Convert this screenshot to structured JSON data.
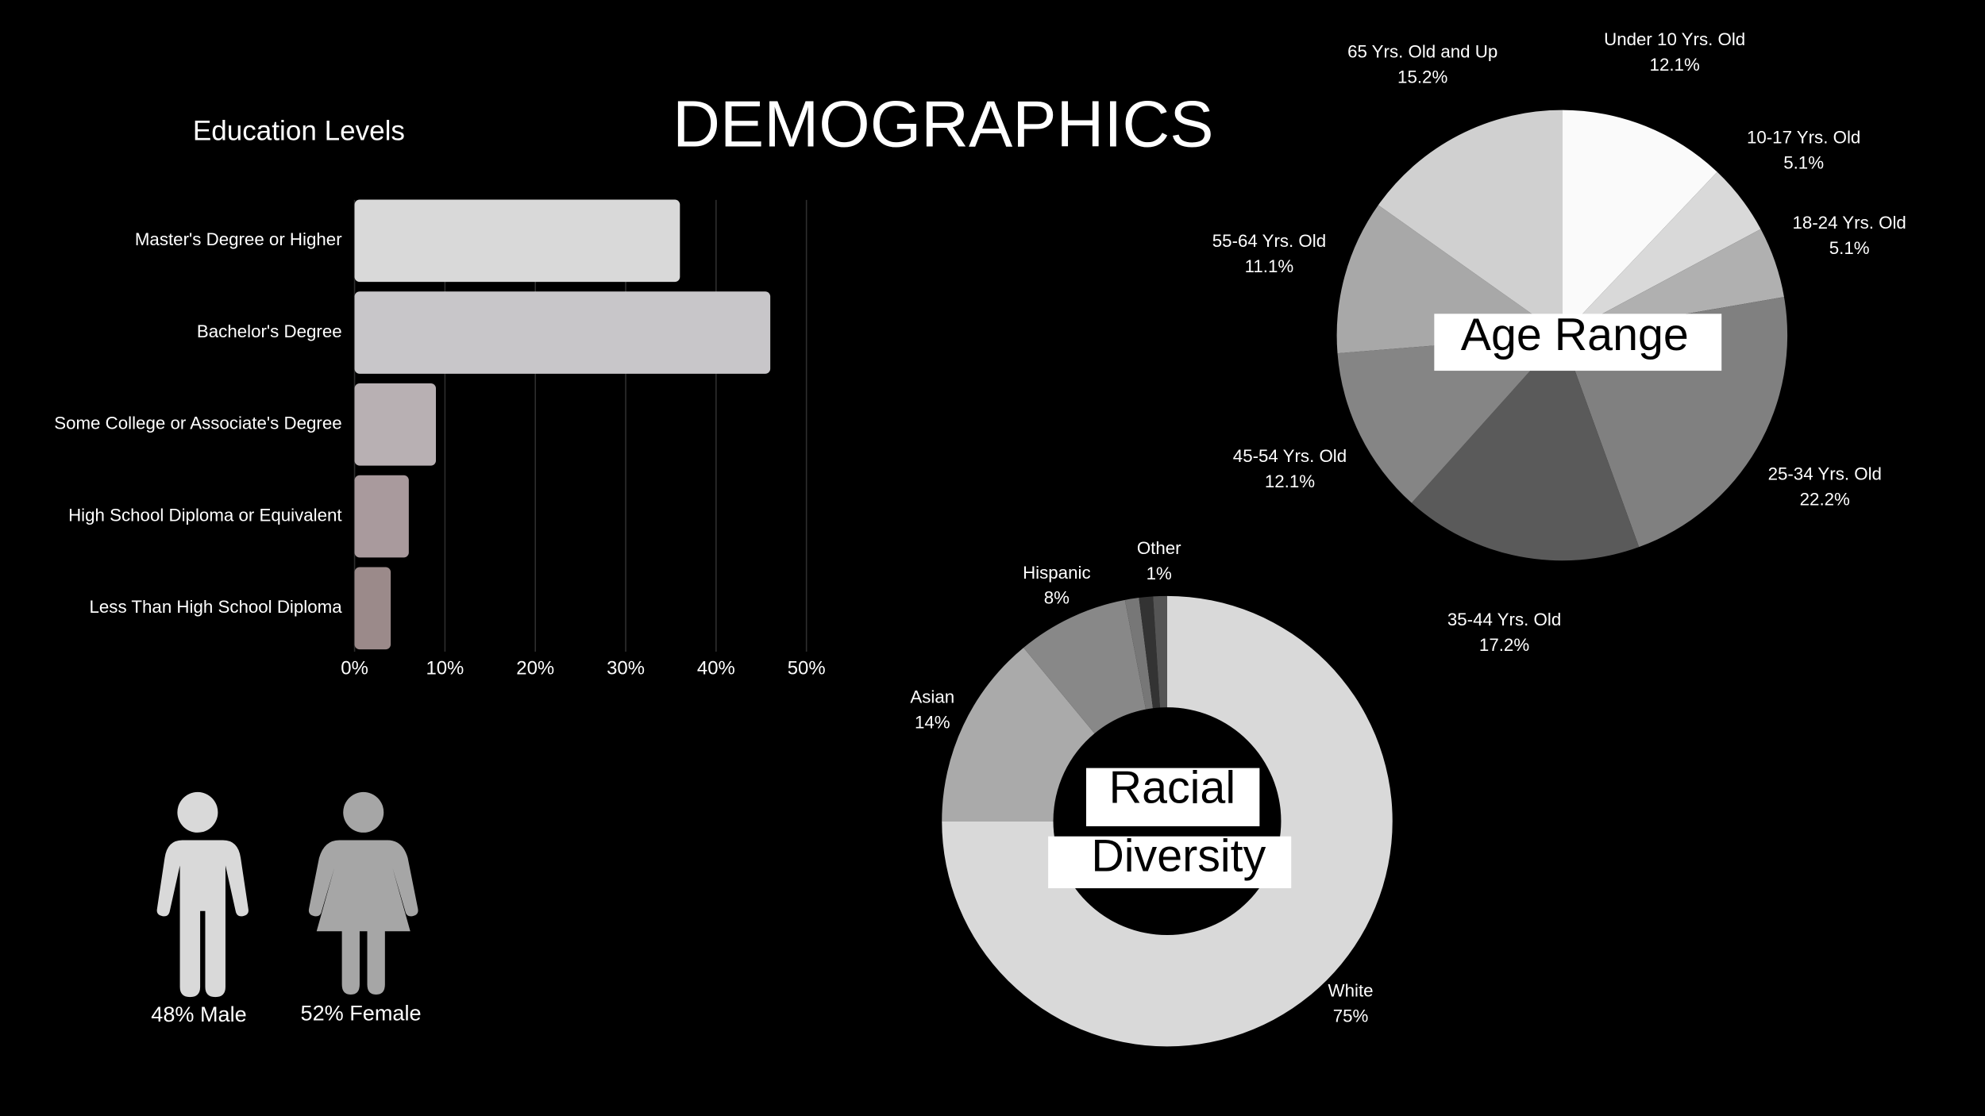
{
  "title": "DEMOGRAPHICS",
  "gender": {
    "male": "48% Male",
    "female": "52% Female"
  },
  "chart_data": [
    {
      "type": "bar",
      "title": "Education Levels",
      "categories": [
        "Master's Degree or Higher",
        "Bachelor's Degree",
        "Some College or Associate's Degree",
        "High School Diploma or Equivalent",
        "Less Than High School Diploma"
      ],
      "values": [
        36,
        46,
        9,
        6,
        4
      ],
      "colors": [
        "#d9d9d9",
        "#c8c6c9",
        "#b8b0b3",
        "#a99a9d",
        "#9b8a8a"
      ],
      "xlim": [
        0,
        50
      ],
      "xticks": [
        {
          "value": 0,
          "label": "0%"
        },
        {
          "value": 10,
          "label": "10%"
        },
        {
          "value": 20,
          "label": "20%"
        },
        {
          "value": 30,
          "label": "30%"
        },
        {
          "value": 40,
          "label": "40%"
        },
        {
          "value": 50,
          "label": "50%"
        }
      ],
      "grid": true
    },
    {
      "type": "pie",
      "title": "Age Range",
      "categories": [
        "Under 10 Yrs. Old",
        "10-17 Yrs. Old",
        "18-24 Yrs. Old",
        "25-34 Yrs. Old",
        "35-44 Yrs. Old",
        "45-54 Yrs. Old",
        "55-64 Yrs. Old",
        "65 Yrs. Old and Up"
      ],
      "values": [
        12.1,
        5.1,
        5.1,
        22.2,
        17.2,
        12.1,
        11.1,
        15.2
      ],
      "value_labels": [
        "12.1%",
        "5.1%",
        "5.1%",
        "22.2%",
        "17.2%",
        "12.1%",
        "11.1%",
        "15.2%"
      ],
      "colors": [
        "#fafafa",
        "#d9d9d9",
        "#b0b0b0",
        "#808080",
        "#5a5a5a",
        "#858585",
        "#a8a8a8",
        "#d0d0d0"
      ]
    },
    {
      "type": "donut",
      "title": [
        "Racial",
        "Diversity"
      ],
      "categories": [
        "White",
        "Asian",
        "Hispanic",
        null,
        null,
        "Other"
      ],
      "values": [
        75,
        14,
        8,
        1,
        1,
        1
      ],
      "value_labels": [
        "75%",
        "14%",
        "8%",
        null,
        null,
        "1%"
      ],
      "colors": [
        "#d9d9d9",
        "#aaaaaa",
        "#888888",
        "#777777",
        "#333333",
        "#555555"
      ]
    }
  ]
}
